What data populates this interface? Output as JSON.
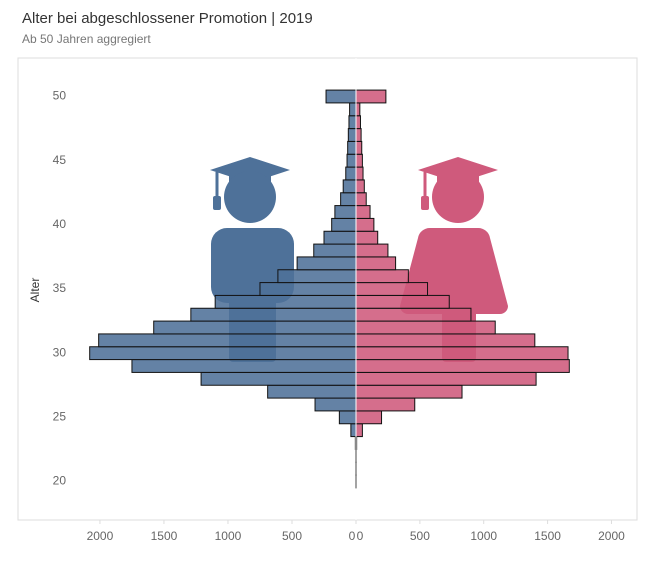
{
  "chart_data": {
    "type": "pyramid",
    "title": "Alter bei abgeschlossener Promotion | 2019",
    "subtitle": "Ab 50 Jahren aggregiert",
    "y_label": "Alter",
    "categories": [
      20,
      21,
      22,
      23,
      24,
      25,
      26,
      27,
      28,
      29,
      30,
      31,
      32,
      33,
      34,
      35,
      36,
      37,
      38,
      39,
      40,
      41,
      42,
      43,
      44,
      45,
      46,
      47,
      48,
      49,
      50
    ],
    "ylim": [
      17,
      53
    ],
    "yticks": [
      20,
      25,
      30,
      35,
      40,
      45,
      50
    ],
    "xlim_left": [
      0,
      2640
    ],
    "xticks_left": [
      0,
      500,
      1000,
      1500,
      2000
    ],
    "xlim_right": [
      0,
      2200
    ],
    "xticks_right": [
      0,
      500,
      1000,
      1500,
      2000
    ],
    "series": [
      {
        "side": "left",
        "color": "#4e7199",
        "values": [
          3,
          3,
          3,
          5,
          40,
          130,
          320,
          690,
          1210,
          1750,
          2080,
          2010,
          1580,
          1290,
          1100,
          750,
          610,
          460,
          330,
          250,
          190,
          165,
          120,
          100,
          80,
          70,
          65,
          60,
          55,
          50,
          234
        ]
      },
      {
        "side": "right",
        "color": "#cf5a7c",
        "values": [
          3,
          3,
          3,
          5,
          50,
          200,
          460,
          830,
          1410,
          1670,
          1660,
          1400,
          1090,
          900,
          730,
          560,
          410,
          310,
          250,
          170,
          140,
          110,
          80,
          65,
          55,
          50,
          45,
          40,
          35,
          30,
          234
        ]
      }
    ]
  }
}
